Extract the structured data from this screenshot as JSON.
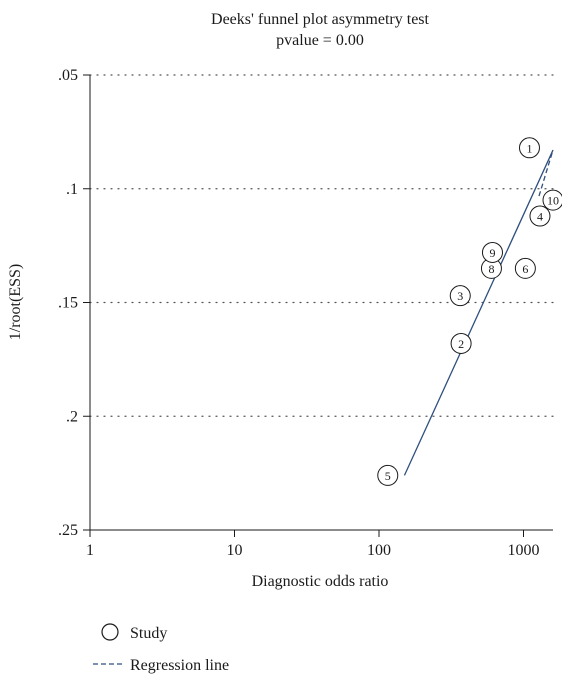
{
  "chart_data": {
    "type": "scatter",
    "title": "Deeks' funnel plot asymmetry test",
    "subtitle": "pvalue = 0.00",
    "xlabel": "Diagnostic odds ratio",
    "ylabel": "1/root(ESS)",
    "x_scale": "log",
    "xlim": [
      1,
      1600
    ],
    "x_ticks": [
      1,
      10,
      100,
      1000
    ],
    "x_tick_labels": [
      "1",
      "10",
      "100",
      "1000"
    ],
    "y_inverted": true,
    "ylim": [
      0.05,
      0.25
    ],
    "y_ticks": [
      0.05,
      0.1,
      0.15,
      0.2,
      0.25
    ],
    "y_tick_labels": [
      ".05",
      ".1",
      ".15",
      ".2",
      ".25"
    ],
    "grid": "horizontal-dotted",
    "colors": {
      "line": "#2f4f7f",
      "axis": "#1a1a1a",
      "grid": "#555555"
    },
    "series": [
      {
        "name": "Study",
        "marker": "circle",
        "points": [
          {
            "label": "1",
            "x": 1100,
            "y": 0.082
          },
          {
            "label": "2",
            "x": 370,
            "y": 0.168
          },
          {
            "label": "3",
            "x": 365,
            "y": 0.147
          },
          {
            "label": "4",
            "x": 1300,
            "y": 0.112
          },
          {
            "label": "5",
            "x": 115,
            "y": 0.226
          },
          {
            "label": "6",
            "x": 1030,
            "y": 0.135
          },
          {
            "label": "8",
            "x": 600,
            "y": 0.135
          },
          {
            "label": "9",
            "x": 610,
            "y": 0.128
          },
          {
            "label": "10",
            "x": 1600,
            "y": 0.105
          }
        ]
      },
      {
        "name": "Regression line",
        "line": [
          {
            "x": 150,
            "y": 0.226
          },
          {
            "x": 1600,
            "y": 0.083
          }
        ]
      }
    ],
    "legend": {
      "position": "bottom-left",
      "items": [
        "Study",
        "Regression line"
      ]
    }
  }
}
